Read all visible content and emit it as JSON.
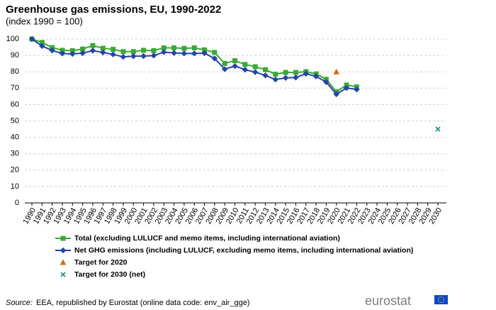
{
  "chart_data": {
    "type": "line",
    "title": "Greenhouse gas emissions, EU, 1990-2022",
    "subtitle": "(index 1990 = 100)",
    "categories": [
      "1990",
      "1991",
      "1992",
      "1993",
      "1994",
      "1995",
      "1996",
      "1997",
      "1998",
      "1999",
      "2000",
      "2001",
      "2002",
      "2003",
      "2004",
      "2005",
      "2006",
      "2007",
      "2008",
      "2009",
      "2010",
      "2011",
      "2012",
      "2013",
      "2014",
      "2015",
      "2016",
      "2017",
      "2018",
      "2019",
      "2020",
      "2021",
      "2022",
      "2023",
      "2024",
      "2025",
      "2026",
      "2027",
      "2028",
      "2029",
      "2030"
    ],
    "ylim": [
      0,
      100
    ],
    "yticks": [
      0,
      10,
      20,
      30,
      40,
      50,
      60,
      70,
      80,
      90,
      100
    ],
    "grid": true,
    "legend": "bottom",
    "series": [
      {
        "name": "Total (excluding LULUCF and memo items, including international aviation)",
        "color": "#3aa935",
        "marker": "square",
        "line": true,
        "values": [
          100,
          97.9,
          94.8,
          93.1,
          92.9,
          93.9,
          96,
          94.4,
          93.7,
          92.3,
          92.3,
          93.1,
          92.9,
          94.6,
          94.6,
          94.3,
          94.6,
          93.4,
          91.8,
          85.1,
          86.8,
          84.5,
          83.1,
          81.3,
          78.5,
          79.6,
          79.6,
          80.1,
          78.7,
          75.4,
          67.8,
          71.9,
          70.8,
          null,
          null,
          null,
          null,
          null,
          null,
          null,
          null
        ]
      },
      {
        "name": "Net GHG emissions (including LULUCF, excluding memo items, including international aviation)",
        "color": "#2644a7",
        "marker": "diamond",
        "line": true,
        "values": [
          100,
          95.7,
          93,
          91.2,
          90.9,
          91.4,
          92.9,
          91.8,
          90.6,
          89.1,
          89.5,
          89.6,
          89.9,
          92,
          91.5,
          91.2,
          91.2,
          91.4,
          88.1,
          81.6,
          83.5,
          81.3,
          79.8,
          77.8,
          75.3,
          76.3,
          76.5,
          78.8,
          77.2,
          73.7,
          66.3,
          70.1,
          69.2,
          null,
          null,
          null,
          null,
          null,
          null,
          null,
          null
        ]
      },
      {
        "name": "Target for 2020",
        "color": "#d36b1e",
        "marker": "triangle",
        "line": false,
        "values": [
          null,
          null,
          null,
          null,
          null,
          null,
          null,
          null,
          null,
          null,
          null,
          null,
          null,
          null,
          null,
          null,
          null,
          null,
          null,
          null,
          null,
          null,
          null,
          null,
          null,
          null,
          null,
          null,
          null,
          null,
          80,
          null,
          null,
          null,
          null,
          null,
          null,
          null,
          null,
          null,
          null
        ]
      },
      {
        "name": "Target for 2030 (net)",
        "color": "#2a8d8d",
        "marker": "x",
        "line": false,
        "values": [
          null,
          null,
          null,
          null,
          null,
          null,
          null,
          null,
          null,
          null,
          null,
          null,
          null,
          null,
          null,
          null,
          null,
          null,
          null,
          null,
          null,
          null,
          null,
          null,
          null,
          null,
          null,
          null,
          null,
          null,
          null,
          null,
          null,
          null,
          null,
          null,
          null,
          null,
          null,
          null,
          45
        ]
      }
    ],
    "source_label": "Source:",
    "source": "EEA, republished by Eurostat (online data code: env_air_gge)",
    "logo": "eurostat"
  }
}
